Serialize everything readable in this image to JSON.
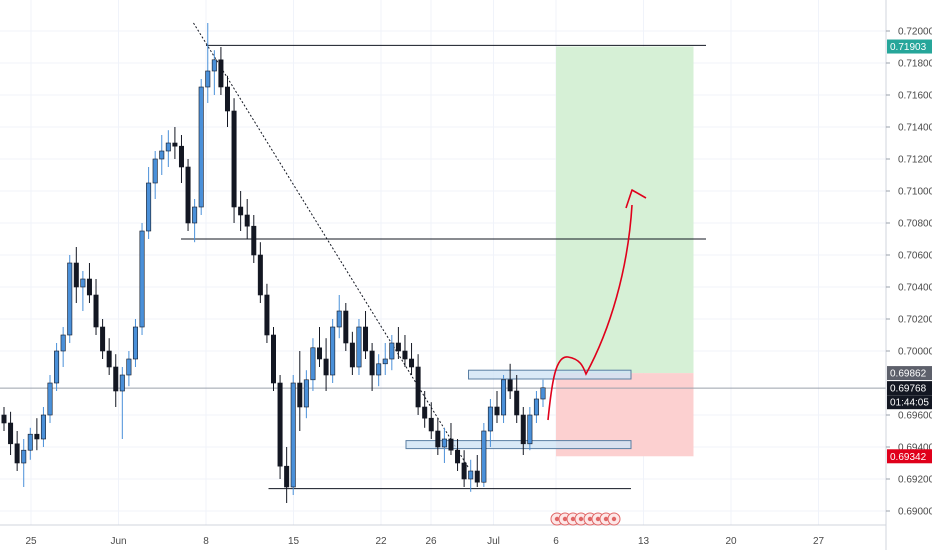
{
  "chart_data": {
    "type": "candlestick",
    "title": "",
    "xlabel": "",
    "ylabel": "",
    "ylim": [
      0.689,
      0.721
    ],
    "y_ticks": [
      "0.72000",
      "0.71800",
      "0.71600",
      "0.71400",
      "0.71200",
      "0.71000",
      "0.70800",
      "0.70600",
      "0.70400",
      "0.70200",
      "0.70000",
      "0.69600",
      "0.69400",
      "0.69200",
      "0.69000"
    ],
    "x_ticks": [
      {
        "label": "25",
        "date": "2020-05-25"
      },
      {
        "label": "Jun",
        "date": "2020-06-01"
      },
      {
        "label": "8",
        "date": "2020-06-08"
      },
      {
        "label": "15",
        "date": "2020-06-15"
      },
      {
        "label": "22",
        "date": "2020-06-22"
      },
      {
        "label": "26",
        "date": "2020-06-26"
      },
      {
        "label": "Jul",
        "date": "2020-07-01"
      },
      {
        "label": "6",
        "date": "2020-07-06"
      },
      {
        "label": "13",
        "date": "2020-07-13"
      },
      {
        "label": "20",
        "date": "2020-07-20"
      },
      {
        "label": "27",
        "date": "2020-07-27"
      }
    ],
    "price_tags": [
      {
        "label": "0.71903",
        "value": 0.71903,
        "color": "#26a69a"
      },
      {
        "label": "0.69862",
        "value": 0.69862,
        "color": "#5d606b"
      },
      {
        "label": "0.69768",
        "value": 0.69768,
        "color": "#131722"
      },
      {
        "label": "01:44:05",
        "value": 0.6968,
        "color": "#131722"
      },
      {
        "label": "0.69342",
        "value": 0.69342,
        "color": "#e0001b"
      }
    ],
    "candles": [
      [
        0.696,
        0.6965,
        0.695,
        0.6955
      ],
      [
        0.6955,
        0.6962,
        0.6935,
        0.6942
      ],
      [
        0.6942,
        0.695,
        0.6925,
        0.693
      ],
      [
        0.693,
        0.6945,
        0.6915,
        0.6938
      ],
      [
        0.6938,
        0.6952,
        0.6932,
        0.6948
      ],
      [
        0.6948,
        0.6958,
        0.6938,
        0.6945
      ],
      [
        0.6945,
        0.6965,
        0.694,
        0.696
      ],
      [
        0.696,
        0.6985,
        0.6955,
        0.698
      ],
      [
        0.698,
        0.7005,
        0.6975,
        0.7
      ],
      [
        0.7,
        0.7015,
        0.699,
        0.701
      ],
      [
        0.701,
        0.706,
        0.7005,
        0.7055
      ],
      [
        0.7055,
        0.7065,
        0.703,
        0.704
      ],
      [
        0.704,
        0.705,
        0.7025,
        0.7045
      ],
      [
        0.7045,
        0.7055,
        0.703,
        0.7035
      ],
      [
        0.7035,
        0.7045,
        0.701,
        0.7015
      ],
      [
        0.7015,
        0.702,
        0.6995,
        0.7
      ],
      [
        0.7,
        0.7008,
        0.6985,
        0.699
      ],
      [
        0.699,
        0.6998,
        0.6965,
        0.6975
      ],
      [
        0.6975,
        0.699,
        0.6945,
        0.6985
      ],
      [
        0.6985,
        0.7,
        0.6978,
        0.6995
      ],
      [
        0.6995,
        0.702,
        0.699,
        0.7015
      ],
      [
        0.7015,
        0.708,
        0.701,
        0.7075
      ],
      [
        0.7075,
        0.7115,
        0.707,
        0.7105
      ],
      [
        0.7105,
        0.7125,
        0.7095,
        0.712
      ],
      [
        0.712,
        0.7135,
        0.711,
        0.7125
      ],
      [
        0.7125,
        0.7138,
        0.7115,
        0.713
      ],
      [
        0.713,
        0.714,
        0.712,
        0.7128
      ],
      [
        0.7128,
        0.7135,
        0.7105,
        0.7115
      ],
      [
        0.7115,
        0.712,
        0.7075,
        0.708
      ],
      [
        0.708,
        0.7095,
        0.7068,
        0.709
      ],
      [
        0.709,
        0.717,
        0.7085,
        0.7165
      ],
      [
        0.7165,
        0.7205,
        0.7155,
        0.7175
      ],
      [
        0.7175,
        0.7188,
        0.716,
        0.7182
      ],
      [
        0.7182,
        0.719,
        0.716,
        0.7165
      ],
      [
        0.7165,
        0.7172,
        0.714,
        0.715
      ],
      [
        0.715,
        0.7158,
        0.708,
        0.709
      ],
      [
        0.709,
        0.71,
        0.7075,
        0.7085
      ],
      [
        0.7085,
        0.7095,
        0.707,
        0.7078
      ],
      [
        0.7078,
        0.7085,
        0.7055,
        0.706
      ],
      [
        0.706,
        0.7068,
        0.703,
        0.7035
      ],
      [
        0.7035,
        0.7042,
        0.7005,
        0.701
      ],
      [
        0.701,
        0.7015,
        0.6975,
        0.698
      ],
      [
        0.698,
        0.6985,
        0.692,
        0.6928
      ],
      [
        0.6928,
        0.694,
        0.6905,
        0.6915
      ],
      [
        0.6915,
        0.6985,
        0.691,
        0.698
      ],
      [
        0.698,
        0.7,
        0.695,
        0.6965
      ],
      [
        0.6965,
        0.6988,
        0.6958,
        0.6982
      ],
      [
        0.6982,
        0.7008,
        0.6975,
        0.7002
      ],
      [
        0.7002,
        0.7015,
        0.699,
        0.6995
      ],
      [
        0.6995,
        0.7008,
        0.6975,
        0.6985
      ],
      [
        0.6985,
        0.702,
        0.698,
        0.7015
      ],
      [
        0.7015,
        0.7035,
        0.7008,
        0.7025
      ],
      [
        0.7025,
        0.703,
        0.7,
        0.7005
      ],
      [
        0.7005,
        0.7012,
        0.6985,
        0.699
      ],
      [
        0.699,
        0.702,
        0.6985,
        0.7015
      ],
      [
        0.7015,
        0.7025,
        0.6995,
        0.7
      ],
      [
        0.7,
        0.7005,
        0.6975,
        0.6985
      ],
      [
        0.6985,
        0.6998,
        0.6978,
        0.6992
      ],
      [
        0.6992,
        0.7005,
        0.6985,
        0.6995
      ],
      [
        0.6995,
        0.701,
        0.6988,
        0.7005
      ],
      [
        0.7005,
        0.7015,
        0.6995,
        0.7
      ],
      [
        0.7,
        0.701,
        0.699,
        0.6995
      ],
      [
        0.6995,
        0.7005,
        0.6985,
        0.699
      ],
      [
        0.699,
        0.6998,
        0.696,
        0.6965
      ],
      [
        0.6965,
        0.6975,
        0.6952,
        0.6958
      ],
      [
        0.6958,
        0.6968,
        0.6945,
        0.695
      ],
      [
        0.695,
        0.6958,
        0.6935,
        0.694
      ],
      [
        0.694,
        0.6952,
        0.693,
        0.6945
      ],
      [
        0.6945,
        0.6955,
        0.6935,
        0.6938
      ],
      [
        0.6938,
        0.6945,
        0.6925,
        0.693
      ],
      [
        0.693,
        0.6938,
        0.6915,
        0.692
      ],
      [
        0.692,
        0.6932,
        0.6912,
        0.6925
      ],
      [
        0.6925,
        0.6935,
        0.6915,
        0.6918
      ],
      [
        0.6918,
        0.6955,
        0.6915,
        0.695
      ],
      [
        0.695,
        0.697,
        0.694,
        0.6965
      ],
      [
        0.6965,
        0.6975,
        0.6955,
        0.696
      ],
      [
        0.696,
        0.6985,
        0.6955,
        0.6982
      ],
      [
        0.6982,
        0.6992,
        0.697,
        0.6975
      ],
      [
        0.6975,
        0.6985,
        0.6955,
        0.696
      ],
      [
        0.696,
        0.6965,
        0.6935,
        0.6942
      ],
      [
        0.6942,
        0.6965,
        0.6938,
        0.696
      ],
      [
        0.696,
        0.6975,
        0.6955,
        0.697
      ],
      [
        0.697,
        0.6982,
        0.6965,
        0.6977
      ]
    ],
    "drawings": {
      "trendline": {
        "from": [
          "2020-06-07",
          0.7205
        ],
        "to": [
          "2020-06-29",
          0.6927
        ],
        "style": "dotted"
      },
      "hlines": [
        {
          "from": "2020-06-08",
          "to": "2020-07-18",
          "value": 0.7191
        },
        {
          "from": "2020-06-06",
          "to": "2020-07-18",
          "value": 0.707
        },
        {
          "from": "2020-06-13",
          "to": "2020-07-12",
          "value": 0.6914
        }
      ],
      "boxes": [
        {
          "from": "2020-06-29",
          "to": "2020-07-12",
          "top": 0.6988,
          "bottom": 0.69825
        },
        {
          "from": "2020-06-24",
          "to": "2020-07-12",
          "top": 0.6944,
          "bottom": 0.6939
        }
      ],
      "target_zone": {
        "from": "2020-07-06",
        "to": "2020-07-17",
        "top": 0.71903,
        "bottom": 0.69862,
        "color": "#d6f0d6"
      },
      "stop_zone": {
        "from": "2020-07-06",
        "to": "2020-07-17",
        "top": 0.69862,
        "bottom": 0.69342,
        "color": "#fcd0d0"
      },
      "last_price": 0.69768,
      "arrow_color": "#e0001b"
    },
    "colors": {
      "up": "#4a90d9",
      "down": "#131722"
    }
  }
}
